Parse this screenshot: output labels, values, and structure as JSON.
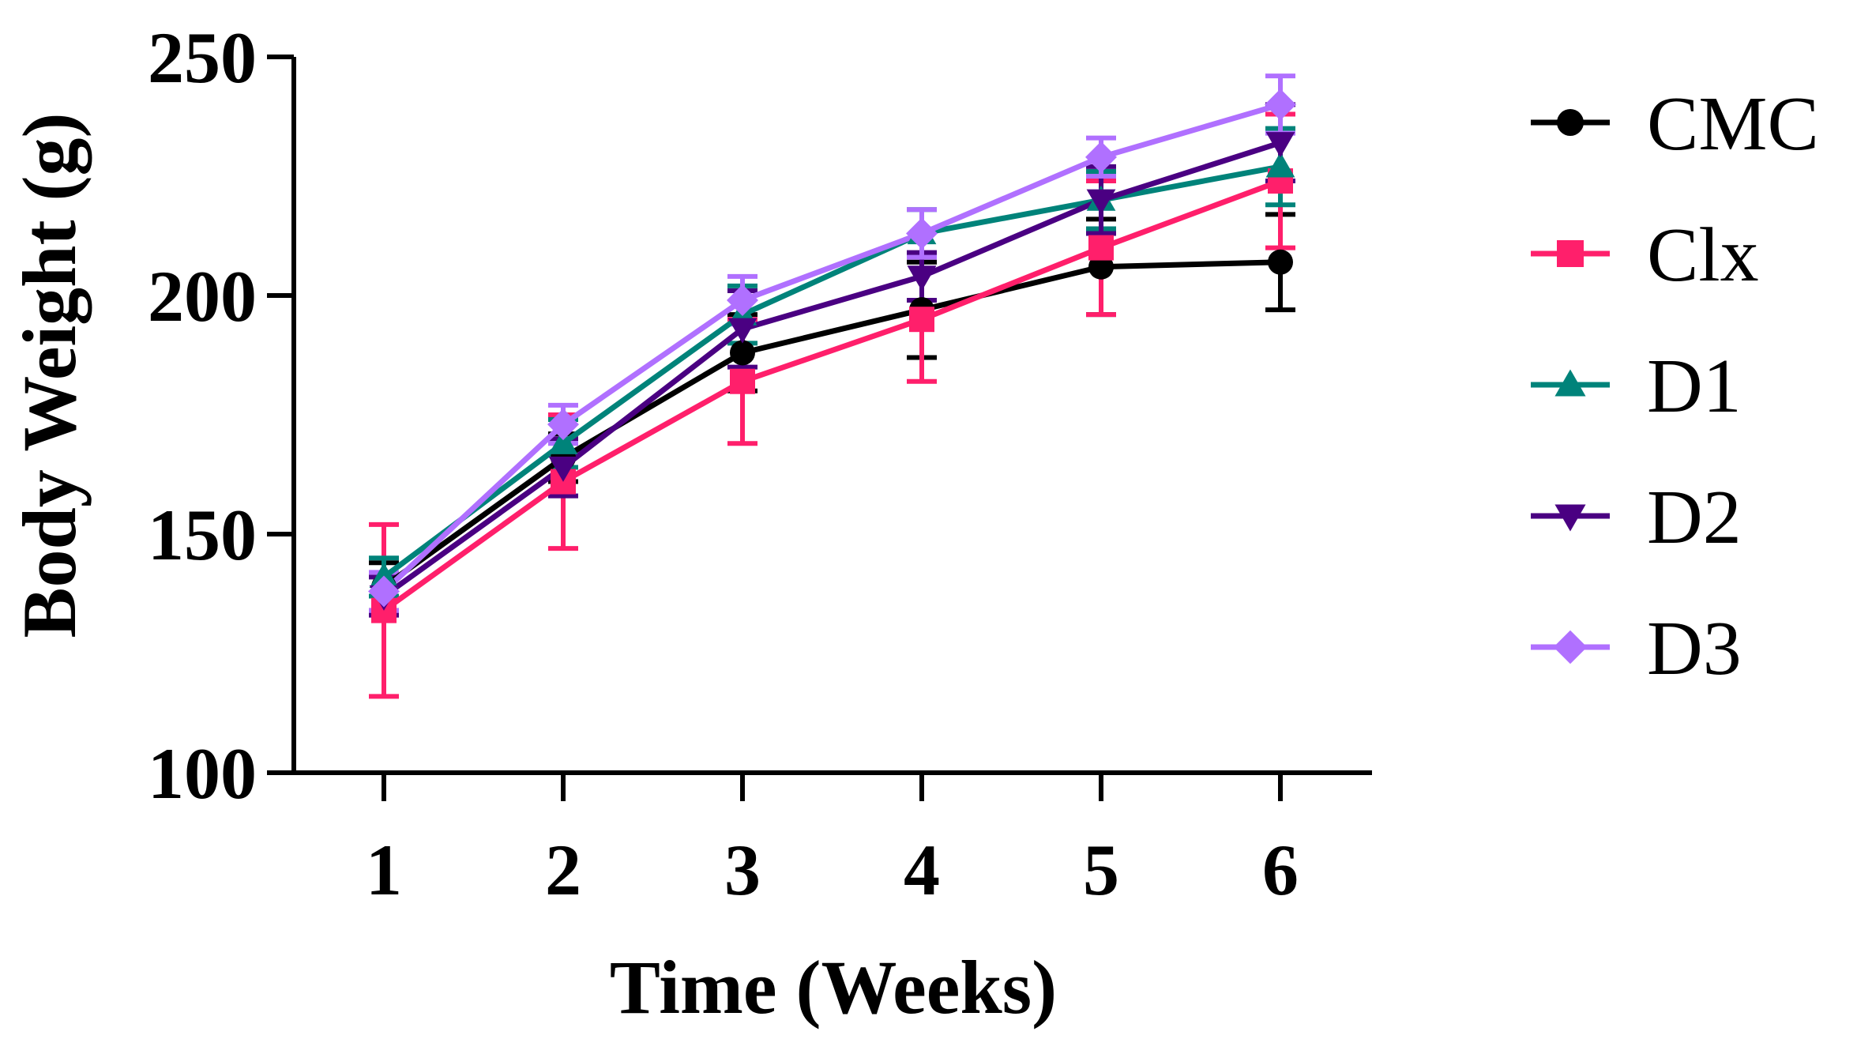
{
  "chart_data": {
    "type": "line",
    "title": "",
    "xlabel": "Time (Weeks)",
    "ylabel": "Body Weight (g)",
    "x": [
      1,
      2,
      3,
      4,
      5,
      6
    ],
    "xlim": [
      0.5,
      6.5
    ],
    "ylim": [
      100,
      250
    ],
    "yticks": [
      100,
      150,
      200,
      250
    ],
    "grid": false,
    "legend_position": "right",
    "series": [
      {
        "name": "CMC",
        "color": "#000000",
        "marker": "circle",
        "values": [
          139,
          166,
          188,
          197,
          206,
          207
        ],
        "errors": [
          5,
          5,
          8,
          10,
          10,
          10
        ]
      },
      {
        "name": "Clx",
        "color": "#ff1f6b",
        "marker": "square",
        "values": [
          134,
          161,
          182,
          195,
          210,
          224
        ],
        "errors": [
          18,
          14,
          13,
          13,
          14,
          14
        ]
      },
      {
        "name": "D1",
        "color": "#00837a",
        "marker": "triangle-up",
        "values": [
          141,
          169,
          196,
          213,
          220,
          227
        ],
        "errors": [
          4,
          5,
          6,
          5,
          6,
          8
        ]
      },
      {
        "name": "D2",
        "color": "#4a0082",
        "marker": "triangle-down",
        "values": [
          137,
          164,
          193,
          204,
          220,
          232
        ],
        "errors": [
          4,
          6,
          8,
          5,
          7,
          8
        ]
      },
      {
        "name": "D3",
        "color": "#b070ff",
        "marker": "diamond",
        "values": [
          138,
          173,
          199,
          213,
          229,
          240
        ],
        "errors": [
          4,
          4,
          5,
          5,
          4,
          6
        ]
      }
    ]
  }
}
